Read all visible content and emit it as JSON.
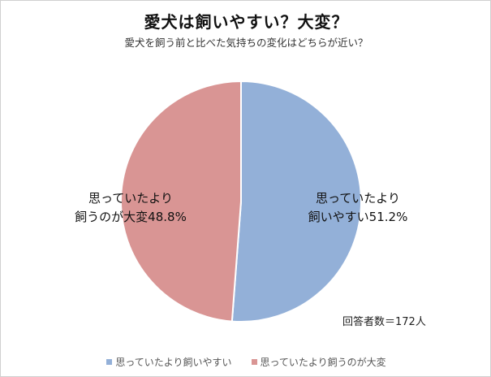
{
  "chart_data": {
    "type": "pie",
    "title": "愛犬は飼いやすい？大変？",
    "subtitle": "愛犬を飼う前と比べた気持ちの変化はどちらが近い？",
    "slices": [
      {
        "name": "思っていたより飼いやすい",
        "value": 51.2,
        "label_lines": [
          "思っていたより",
          "飼いやすい51.2%"
        ],
        "color": "#93b0d8"
      },
      {
        "name": "思っていたより飼うのが大変",
        "value": 48.8,
        "label_lines": [
          "思っていたより",
          "飼うのが大変48.8%"
        ],
        "color": "#d99594"
      }
    ],
    "start_angle": "top",
    "direction": "clockwise",
    "legend_position": "bottom",
    "note": "回答者数＝172人"
  }
}
